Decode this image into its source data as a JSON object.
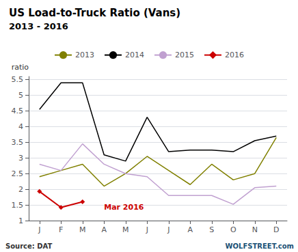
{
  "chart_data": {
    "type": "line",
    "title": "US Load-to-Truck Ratio (Vans)",
    "subtitle": "2013 - 2016",
    "y_label": "ratio",
    "categories": [
      "J",
      "F",
      "M",
      "A",
      "M",
      "J",
      "J",
      "A",
      "S",
      "O",
      "N",
      "D"
    ],
    "series": [
      {
        "name": "2013",
        "color": "#808000",
        "values": [
          2.4,
          2.6,
          2.8,
          2.1,
          2.5,
          3.05,
          2.6,
          2.15,
          2.8,
          2.3,
          2.5,
          3.65
        ]
      },
      {
        "name": "2014",
        "color": "#000000",
        "values": [
          4.55,
          5.4,
          5.4,
          3.1,
          2.9,
          4.3,
          3.2,
          3.25,
          3.25,
          3.2,
          3.55,
          3.7
        ]
      },
      {
        "name": "2015",
        "color": "#c0a0d0",
        "values": [
          2.8,
          2.6,
          3.45,
          2.8,
          2.5,
          2.4,
          1.8,
          1.8,
          1.8,
          1.52,
          2.05,
          2.1
        ]
      },
      {
        "name": "2016",
        "color": "#cc0000",
        "marker": "diamond",
        "values": [
          1.93,
          1.42,
          1.6,
          null,
          null,
          null,
          null,
          null,
          null,
          null,
          null,
          null
        ]
      }
    ],
    "ylim": [
      1.0,
      5.6
    ],
    "yticks": [
      1,
      1.5,
      2,
      2.5,
      3,
      3.5,
      4,
      4.5,
      5,
      5.5
    ],
    "grid": true,
    "legend": "top",
    "annotations": [
      {
        "text": "Mar 2016",
        "x": 3,
        "y": 1.58,
        "color": "#cc0000"
      }
    ],
    "source": "Source: DAT",
    "watermark": "WOLFSTREET.com"
  }
}
